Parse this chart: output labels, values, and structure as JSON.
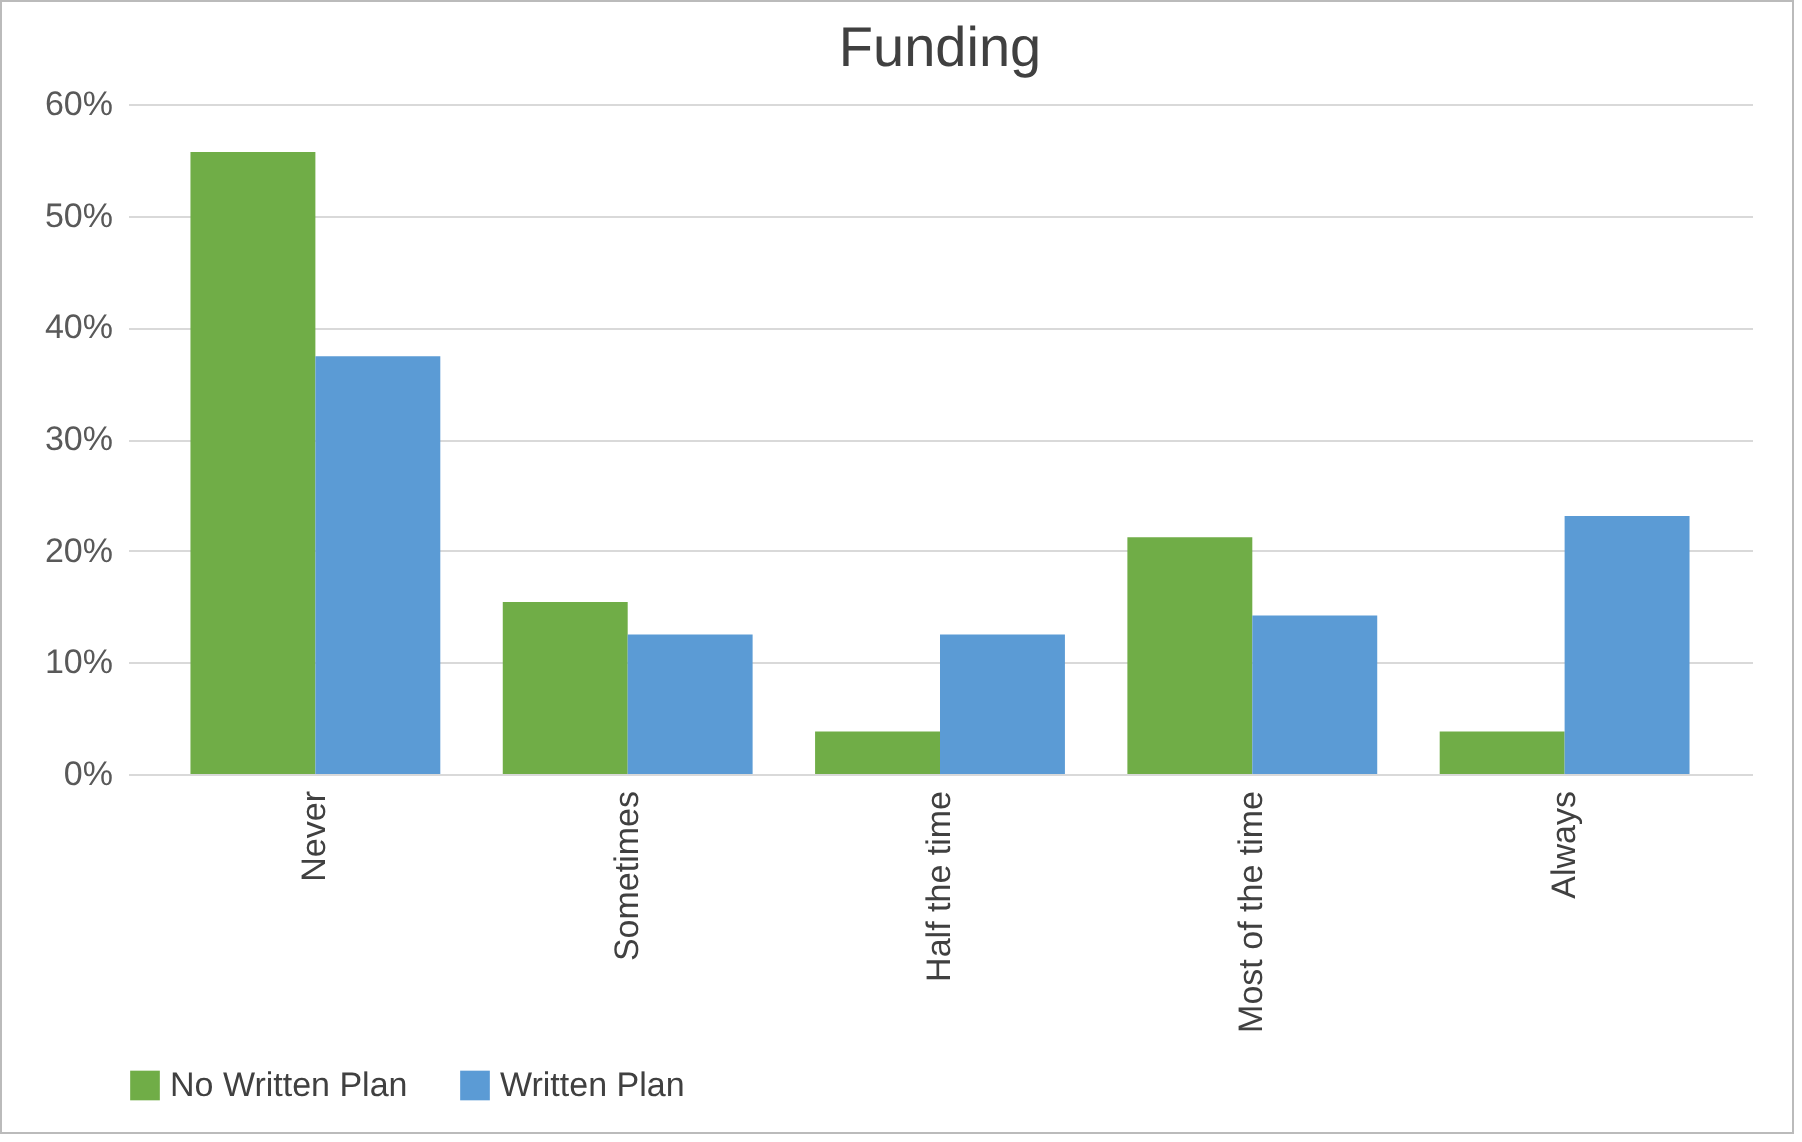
{
  "chart_data": {
    "type": "bar",
    "title": "Funding",
    "categories": [
      "Never",
      "Sometimes",
      "Half the time",
      "Most of the time",
      "Always"
    ],
    "series": [
      {
        "name": "No Written Plan",
        "color": "#70ad47",
        "values": [
          55.7,
          15.4,
          3.8,
          21.2,
          3.8
        ]
      },
      {
        "name": "Written Plan",
        "color": "#5b9bd5",
        "values": [
          37.4,
          12.5,
          12.5,
          14.2,
          23.1
        ]
      }
    ],
    "ylim": [
      0,
      60
    ],
    "yticks": [
      {
        "value": 0,
        "label": "0%"
      },
      {
        "value": 10,
        "label": "10%"
      },
      {
        "value": 20,
        "label": "20%"
      },
      {
        "value": 30,
        "label": "30%"
      },
      {
        "value": 40,
        "label": "40%"
      },
      {
        "value": 50,
        "label": "50%"
      },
      {
        "value": 60,
        "label": "60%"
      }
    ],
    "grid": "y",
    "legend": "bottom"
  }
}
